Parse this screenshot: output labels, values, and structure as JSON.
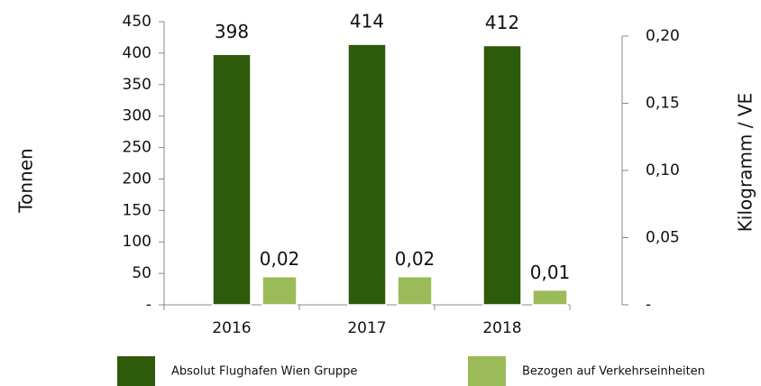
{
  "chart_data": {
    "type": "bar",
    "categories": [
      "2016",
      "2017",
      "2018"
    ],
    "series": [
      {
        "name": "Absolut Flughafen Wien Gruppe",
        "color": "#2d5a0b",
        "values": [
          398,
          414,
          412
        ]
      },
      {
        "name": "Bezogen auf Verkehrseinheiten",
        "color": "#9bbb59",
        "values": [
          0.021,
          0.021,
          0.011
        ],
        "value_labels": [
          "0,02",
          "0,02",
          "0,01"
        ],
        "axis": "y2"
      }
    ],
    "ylabel": "Tonnen",
    "y2label": "Kilogramm / VE",
    "ylim": [
      0,
      450
    ],
    "yticks": [
      {
        "value": 0,
        "label": "-"
      },
      50,
      100,
      150,
      200,
      250,
      300,
      350,
      400,
      450
    ],
    "y2lim": [
      0,
      0.2
    ],
    "y2ticks": [
      {
        "value": 0,
        "label": "-"
      },
      {
        "value": 0.05,
        "label": "0,05"
      },
      {
        "value": 0.1,
        "label": "0,10"
      },
      {
        "value": 0.15,
        "label": "0,15"
      },
      {
        "value": 0.2,
        "label": "0,20"
      }
    ],
    "legend": "bottom"
  }
}
